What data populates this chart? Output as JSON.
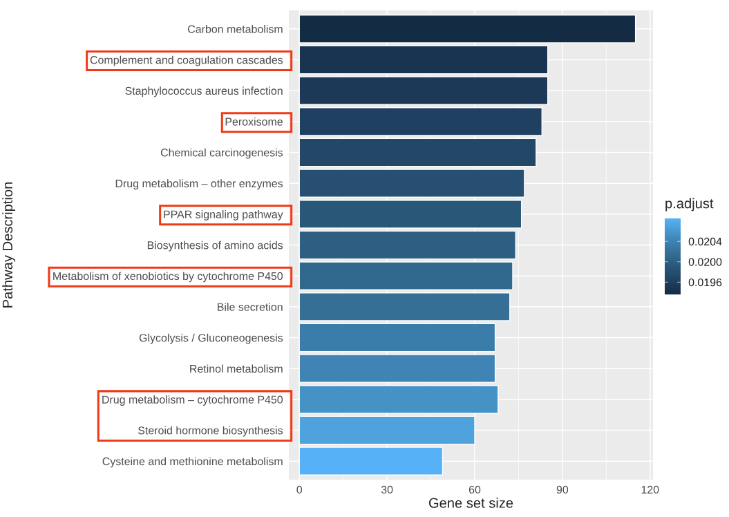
{
  "chart_data": {
    "type": "bar",
    "orientation": "horizontal",
    "xlabel": "Gene set size",
    "ylabel": "Pathway Description",
    "clabel": "p.adjust",
    "categories": [
      "Carbon metabolism",
      "Complement and coagulation cascades",
      "Staphylococcus aureus infection",
      "Peroxisome",
      "Chemical carcinogenesis",
      "Drug metabolism – other enzymes",
      "PPAR signaling pathway",
      "Biosynthesis of amino acids",
      "Metabolism of xenobiotics by cytochrome P450",
      "Bile secretion",
      "Glycolysis / Gluconeogenesis",
      "Retinol metabolism",
      "Drug metabolism – cytochrome P450",
      "Steroid hormone biosynthesis",
      "Cysteine and methionine metabolism"
    ],
    "values": [
      115,
      85,
      85,
      83,
      81,
      77,
      76,
      74,
      73,
      72,
      67,
      67,
      68,
      60,
      49
    ],
    "colors": [
      "#132b43",
      "#183450",
      "#1c3a58",
      "#1f4060",
      "#224767",
      "#264f71",
      "#295778",
      "#2d5f83",
      "#31688d",
      "#356f96",
      "#3b7daa",
      "#3f84b4",
      "#4592c6",
      "#4ea2de",
      "#56b1f7"
    ],
    "cvalues": [
      0.01936,
      0.01946,
      0.01954,
      0.01962,
      0.0197,
      0.0198,
      0.0199,
      0.02,
      0.0201,
      0.02018,
      0.02034,
      0.02042,
      0.02056,
      0.0207,
      0.02085
    ],
    "clim": [
      0.01936,
      0.02085
    ],
    "cticks": [
      0.0196,
      {
        "value": 0.02,
        "label": "0.0200"
      },
      0.0204
    ],
    "xlim": [
      -3.6,
      121
    ],
    "xticks": [
      0,
      30,
      60,
      90,
      120
    ],
    "grid": true
  }
}
